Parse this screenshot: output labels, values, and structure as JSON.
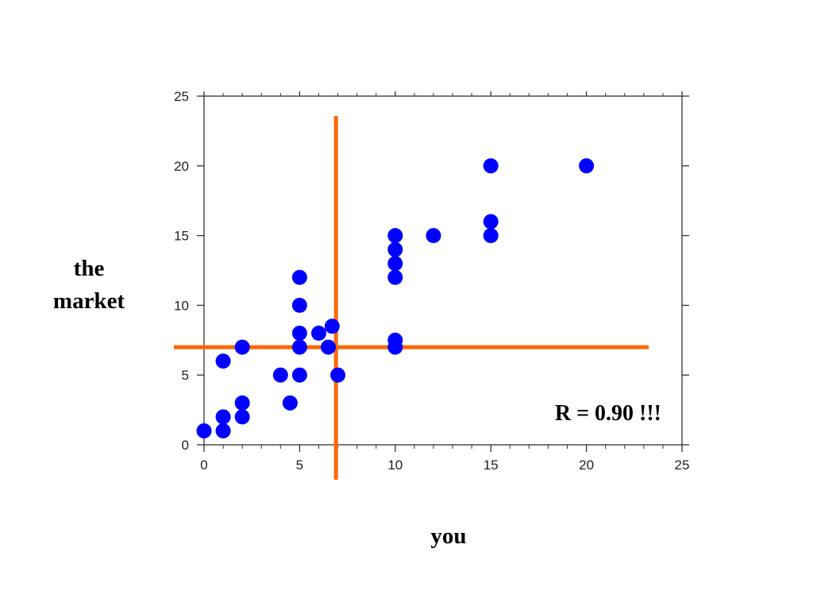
{
  "chart_data": {
    "type": "scatter",
    "xlabel": "you",
    "ylabel": "the market",
    "xlim": [
      0,
      25
    ],
    "ylim": [
      0,
      25
    ],
    "xticks": [
      0,
      5,
      10,
      15,
      20,
      25
    ],
    "yticks": [
      0,
      5,
      10,
      15,
      20,
      25
    ],
    "grid": false,
    "annotation": "R = 0.90 !!!",
    "points_color": "#0000ff",
    "reference_lines_color": "#ff6600",
    "reference_lines": {
      "vertical_x": 6.9,
      "horizontal_y": 7.0
    },
    "points": [
      {
        "x": 0,
        "y": 1
      },
      {
        "x": 1,
        "y": 1
      },
      {
        "x": 1,
        "y": 2
      },
      {
        "x": 1,
        "y": 6
      },
      {
        "x": 2,
        "y": 2
      },
      {
        "x": 2,
        "y": 3
      },
      {
        "x": 2,
        "y": 7
      },
      {
        "x": 4,
        "y": 5
      },
      {
        "x": 4.5,
        "y": 3
      },
      {
        "x": 5,
        "y": 5
      },
      {
        "x": 5,
        "y": 7
      },
      {
        "x": 5,
        "y": 8
      },
      {
        "x": 5,
        "y": 10
      },
      {
        "x": 5,
        "y": 12
      },
      {
        "x": 6,
        "y": 8
      },
      {
        "x": 6.5,
        "y": 7
      },
      {
        "x": 6.7,
        "y": 8.5
      },
      {
        "x": 7,
        "y": 5
      },
      {
        "x": 10,
        "y": 7
      },
      {
        "x": 10,
        "y": 7.5
      },
      {
        "x": 10,
        "y": 12
      },
      {
        "x": 10,
        "y": 13
      },
      {
        "x": 10,
        "y": 14
      },
      {
        "x": 10,
        "y": 15
      },
      {
        "x": 12,
        "y": 15
      },
      {
        "x": 15,
        "y": 15
      },
      {
        "x": 15,
        "y": 16
      },
      {
        "x": 15,
        "y": 20
      },
      {
        "x": 20,
        "y": 20
      }
    ]
  }
}
